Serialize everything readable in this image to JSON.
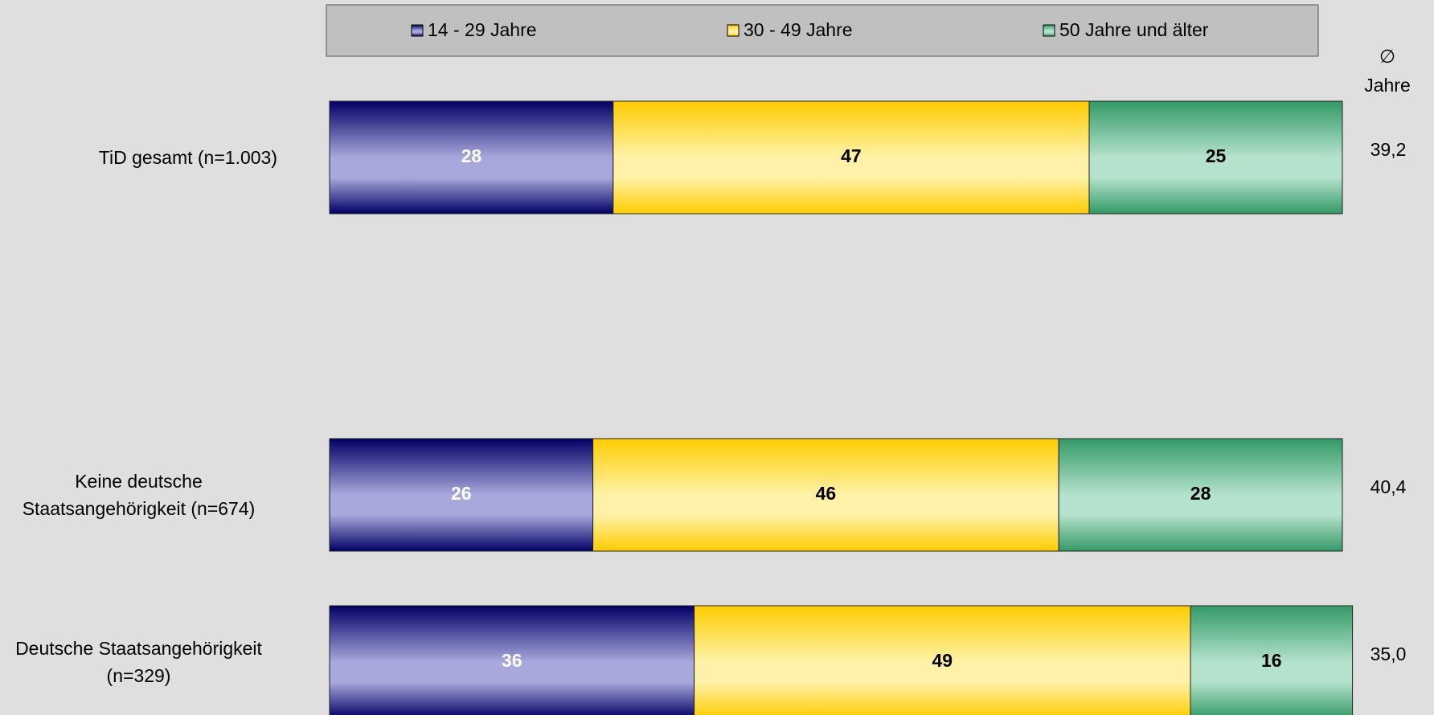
{
  "chart_data": {
    "type": "stacked-bar-horizontal",
    "categories": [
      "TiD gesamt (n=1.003)",
      "Keine deutsche Staatsangehörigkeit (n=674)",
      "Deutsche Staatsangehörigkeit (n=329)"
    ],
    "xlim": [
      0,
      100
    ],
    "series": [
      {
        "name": "14 - 29 Jahre",
        "color": "#000066",
        "light": "#a8a8dc",
        "label_color": "#ffffff",
        "values": [
          28,
          26,
          36
        ]
      },
      {
        "name": "30 - 49 Jahre",
        "color": "#ffcc00",
        "light": "#fff2a8",
        "label_color": "#000000",
        "values": [
          47,
          46,
          49
        ]
      },
      {
        "name": "50 Jahre und älter",
        "color": "#339966",
        "light": "#b4e2cc",
        "label_color": "#000000",
        "values": [
          25,
          28,
          16
        ]
      }
    ],
    "legend": "top",
    "average": {
      "header": [
        "∅",
        "Jahre"
      ],
      "values": [
        39.2,
        40.4,
        35.0
      ],
      "value_labels": [
        "39,2",
        "40,4",
        "35,0"
      ]
    }
  }
}
